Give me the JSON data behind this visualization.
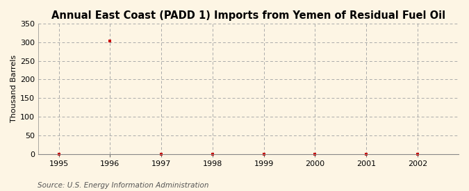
{
  "title": "Annual East Coast (PADD 1) Imports from Yemen of Residual Fuel Oil",
  "ylabel": "Thousand Barrels",
  "source": "Source: U.S. Energy Information Administration",
  "bg_color": "#fdf5e4",
  "years": [
    1995,
    1996,
    1997,
    1998,
    1999,
    2000,
    2001,
    2002
  ],
  "values": [
    0,
    304,
    0,
    0,
    0,
    0,
    0,
    0
  ],
  "xlim": [
    1994.6,
    2002.8
  ],
  "ylim": [
    0,
    350
  ],
  "yticks": [
    0,
    50,
    100,
    150,
    200,
    250,
    300,
    350
  ],
  "xticks": [
    1995,
    1996,
    1997,
    1998,
    1999,
    2000,
    2001,
    2002
  ],
  "marker_color": "#cc0000",
  "marker": "s",
  "marker_size": 3.5,
  "grid_color": "#aaaaaa",
  "title_fontsize": 10.5,
  "label_fontsize": 8,
  "tick_fontsize": 8,
  "source_fontsize": 7.5
}
